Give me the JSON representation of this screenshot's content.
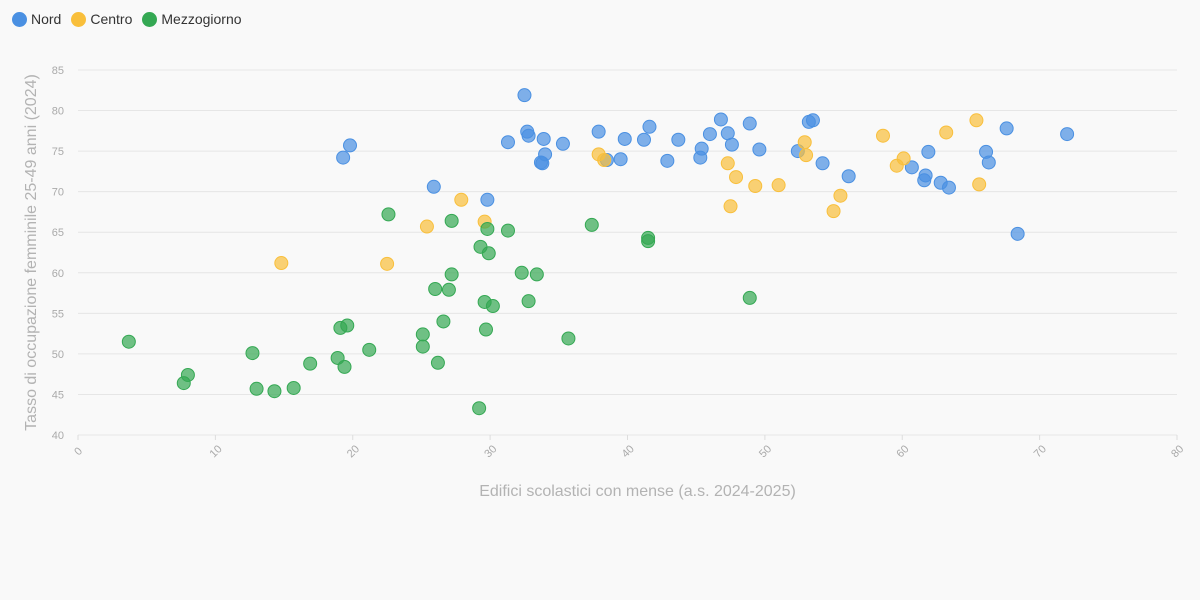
{
  "chart_data": {
    "type": "scatter",
    "xlabel": "Edifici scolastici con mense (a.s. 2024-2025)",
    "ylabel": "Tasso di occupazione femminile 25-49 anni (2024)",
    "xlim": [
      0,
      80
    ],
    "ylim": [
      40,
      85
    ],
    "x_ticks": [
      "0",
      "10",
      "20",
      "30",
      "40",
      "50",
      "60",
      "70",
      "80"
    ],
    "y_ticks": [
      "40",
      "45",
      "50",
      "55",
      "60",
      "65",
      "70",
      "75",
      "80",
      "85"
    ],
    "grid": true,
    "legend_position": "top-left",
    "series": [
      {
        "name": "Nord",
        "color": "#4a90e2",
        "points": [
          [
            19.3,
            74.2
          ],
          [
            19.8,
            75.7
          ],
          [
            25.9,
            70.6
          ],
          [
            29.8,
            69.0
          ],
          [
            31.3,
            76.1
          ],
          [
            32.5,
            81.9
          ],
          [
            32.7,
            77.4
          ],
          [
            32.8,
            76.9
          ],
          [
            33.7,
            73.6
          ],
          [
            33.8,
            73.5
          ],
          [
            33.9,
            76.5
          ],
          [
            34.0,
            74.6
          ],
          [
            35.3,
            75.9
          ],
          [
            37.9,
            77.4
          ],
          [
            38.5,
            73.9
          ],
          [
            39.5,
            74.0
          ],
          [
            39.8,
            76.5
          ],
          [
            41.2,
            76.4
          ],
          [
            41.6,
            78.0
          ],
          [
            42.9,
            73.8
          ],
          [
            43.7,
            76.4
          ],
          [
            45.3,
            74.2
          ],
          [
            45.4,
            75.3
          ],
          [
            46.0,
            77.1
          ],
          [
            46.8,
            78.9
          ],
          [
            47.3,
            77.2
          ],
          [
            47.6,
            75.8
          ],
          [
            48.9,
            78.4
          ],
          [
            49.6,
            75.2
          ],
          [
            52.4,
            75.0
          ],
          [
            53.2,
            78.6
          ],
          [
            53.5,
            78.8
          ],
          [
            54.2,
            73.5
          ],
          [
            56.1,
            71.9
          ],
          [
            60.7,
            73.0
          ],
          [
            61.6,
            71.4
          ],
          [
            61.7,
            72.0
          ],
          [
            61.9,
            74.9
          ],
          [
            62.8,
            71.1
          ],
          [
            63.4,
            70.5
          ],
          [
            66.1,
            74.9
          ],
          [
            66.3,
            73.6
          ],
          [
            67.6,
            77.8
          ],
          [
            68.4,
            64.8
          ],
          [
            72.0,
            77.1
          ]
        ]
      },
      {
        "name": "Centro",
        "color": "#f9bf3b",
        "points": [
          [
            14.8,
            61.2
          ],
          [
            22.5,
            61.1
          ],
          [
            25.4,
            65.7
          ],
          [
            27.9,
            69.0
          ],
          [
            29.6,
            66.3
          ],
          [
            37.9,
            74.6
          ],
          [
            38.3,
            73.9
          ],
          [
            47.3,
            73.5
          ],
          [
            47.5,
            68.2
          ],
          [
            47.9,
            71.8
          ],
          [
            49.3,
            70.7
          ],
          [
            51.0,
            70.8
          ],
          [
            52.9,
            76.1
          ],
          [
            53.0,
            74.5
          ],
          [
            55.0,
            67.6
          ],
          [
            55.5,
            69.5
          ],
          [
            58.6,
            76.9
          ],
          [
            59.6,
            73.2
          ],
          [
            60.1,
            74.1
          ],
          [
            63.2,
            77.3
          ],
          [
            65.4,
            78.8
          ],
          [
            65.6,
            70.9
          ]
        ]
      },
      {
        "name": "Mezzogiorno",
        "color": "#34a853",
        "points": [
          [
            3.7,
            51.5
          ],
          [
            7.7,
            46.4
          ],
          [
            8.0,
            47.4
          ],
          [
            12.7,
            50.1
          ],
          [
            13.0,
            45.7
          ],
          [
            14.3,
            45.4
          ],
          [
            15.7,
            45.8
          ],
          [
            16.9,
            48.8
          ],
          [
            18.9,
            49.5
          ],
          [
            19.1,
            53.2
          ],
          [
            19.4,
            48.4
          ],
          [
            19.6,
            53.5
          ],
          [
            21.2,
            50.5
          ],
          [
            22.6,
            67.2
          ],
          [
            25.1,
            52.4
          ],
          [
            25.1,
            50.9
          ],
          [
            26.0,
            58.0
          ],
          [
            26.2,
            48.9
          ],
          [
            26.6,
            54.0
          ],
          [
            27.0,
            57.9
          ],
          [
            27.2,
            66.4
          ],
          [
            27.2,
            59.8
          ],
          [
            29.2,
            43.3
          ],
          [
            29.3,
            63.2
          ],
          [
            29.6,
            56.4
          ],
          [
            29.7,
            53.0
          ],
          [
            29.8,
            65.4
          ],
          [
            29.9,
            62.4
          ],
          [
            30.2,
            55.9
          ],
          [
            31.3,
            65.2
          ],
          [
            32.3,
            60.0
          ],
          [
            32.8,
            56.5
          ],
          [
            33.4,
            59.8
          ],
          [
            35.7,
            51.9
          ],
          [
            37.4,
            65.9
          ],
          [
            41.5,
            64.3
          ],
          [
            41.5,
            63.9
          ],
          [
            48.9,
            56.9
          ]
        ]
      }
    ]
  }
}
